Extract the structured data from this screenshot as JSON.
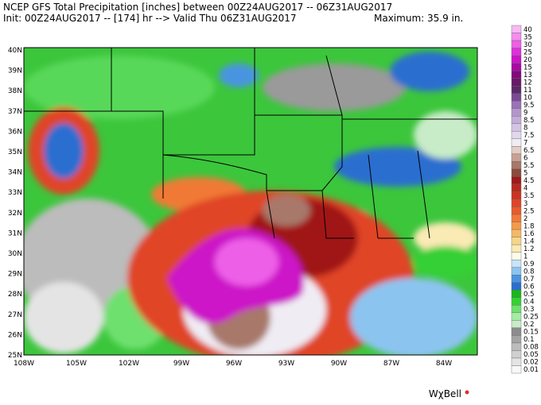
{
  "header": {
    "title": "NCEP GFS Total Precipitation [inches] between 00Z24AUG2017 -- 06Z31AUG2017",
    "subtitle": "Init: 00Z24AUG2017 -- [174] hr --> Valid Thu 06Z31AUG2017",
    "maximum": "Maximum: 35.9 in."
  },
  "map": {
    "latitudes": [
      "40N",
      "39N",
      "38N",
      "37N",
      "36N",
      "35N",
      "34N",
      "33N",
      "32N",
      "31N",
      "30N",
      "29N",
      "28N",
      "27N",
      "26N",
      "25N"
    ],
    "longitudes": [
      "108W",
      "105W",
      "102W",
      "99W",
      "96W",
      "93W",
      "90W",
      "87W",
      "84W"
    ]
  },
  "colorbar": [
    {
      "label": "40",
      "color": "#f7b8f4"
    },
    {
      "label": "35",
      "color": "#f58cf0"
    },
    {
      "label": "30",
      "color": "#ee5ee8"
    },
    {
      "label": "25",
      "color": "#e030dc"
    },
    {
      "label": "20",
      "color": "#cc14c8"
    },
    {
      "label": "15",
      "color": "#a80aa4"
    },
    {
      "label": "13",
      "color": "#84087e"
    },
    {
      "label": "12",
      "color": "#6a1868"
    },
    {
      "label": "11",
      "color": "#5a2a66"
    },
    {
      "label": "10",
      "color": "#7a4a94"
    },
    {
      "label": "9.5",
      "color": "#9a72b8"
    },
    {
      "label": "9",
      "color": "#b496cc"
    },
    {
      "label": "8.5",
      "color": "#c4aed8"
    },
    {
      "label": "8",
      "color": "#d4c4e4"
    },
    {
      "label": "7.5",
      "color": "#e2d8ee"
    },
    {
      "label": "7",
      "color": "#f0ecf4"
    },
    {
      "label": "6.5",
      "color": "#e4ccc4"
    },
    {
      "label": "6",
      "color": "#c8a094"
    },
    {
      "label": "5.5",
      "color": "#a8786a"
    },
    {
      "label": "5",
      "color": "#8a4a3c"
    },
    {
      "label": "4.5",
      "color": "#a01818"
    },
    {
      "label": "4",
      "color": "#b82a1e"
    },
    {
      "label": "3.5",
      "color": "#cc3322"
    },
    {
      "label": "3",
      "color": "#e04426"
    },
    {
      "label": "2.5",
      "color": "#ea5a2c"
    },
    {
      "label": "2",
      "color": "#f07a36"
    },
    {
      "label": "1.8",
      "color": "#f49a48"
    },
    {
      "label": "1.6",
      "color": "#f6b866"
    },
    {
      "label": "1.4",
      "color": "#f8d488"
    },
    {
      "label": "1.2",
      "color": "#faeab4"
    },
    {
      "label": "1",
      "color": "#fffbe8"
    },
    {
      "label": "0.9",
      "color": "#c8e4f8"
    },
    {
      "label": "0.8",
      "color": "#8cc4f0"
    },
    {
      "label": "0.7",
      "color": "#4a94e0"
    },
    {
      "label": "0.6",
      "color": "#2a6ed0"
    },
    {
      "label": "0.5",
      "color": "#18b818"
    },
    {
      "label": "0.4",
      "color": "#34d034"
    },
    {
      "label": "0.3",
      "color": "#6ee06e"
    },
    {
      "label": "0.25",
      "color": "#a4eca4"
    },
    {
      "label": "0.2",
      "color": "#c8ecc8"
    },
    {
      "label": "0.15",
      "color": "#8c8c8c"
    },
    {
      "label": "0.1",
      "color": "#a4a4a4"
    },
    {
      "label": "0.08",
      "color": "#bcbcbc"
    },
    {
      "label": "0.05",
      "color": "#d0d0d0"
    },
    {
      "label": "0.02",
      "color": "#e4e4e4"
    },
    {
      "label": "0.01",
      "color": "#f8f8f8"
    }
  ],
  "logo": "WχBell"
}
